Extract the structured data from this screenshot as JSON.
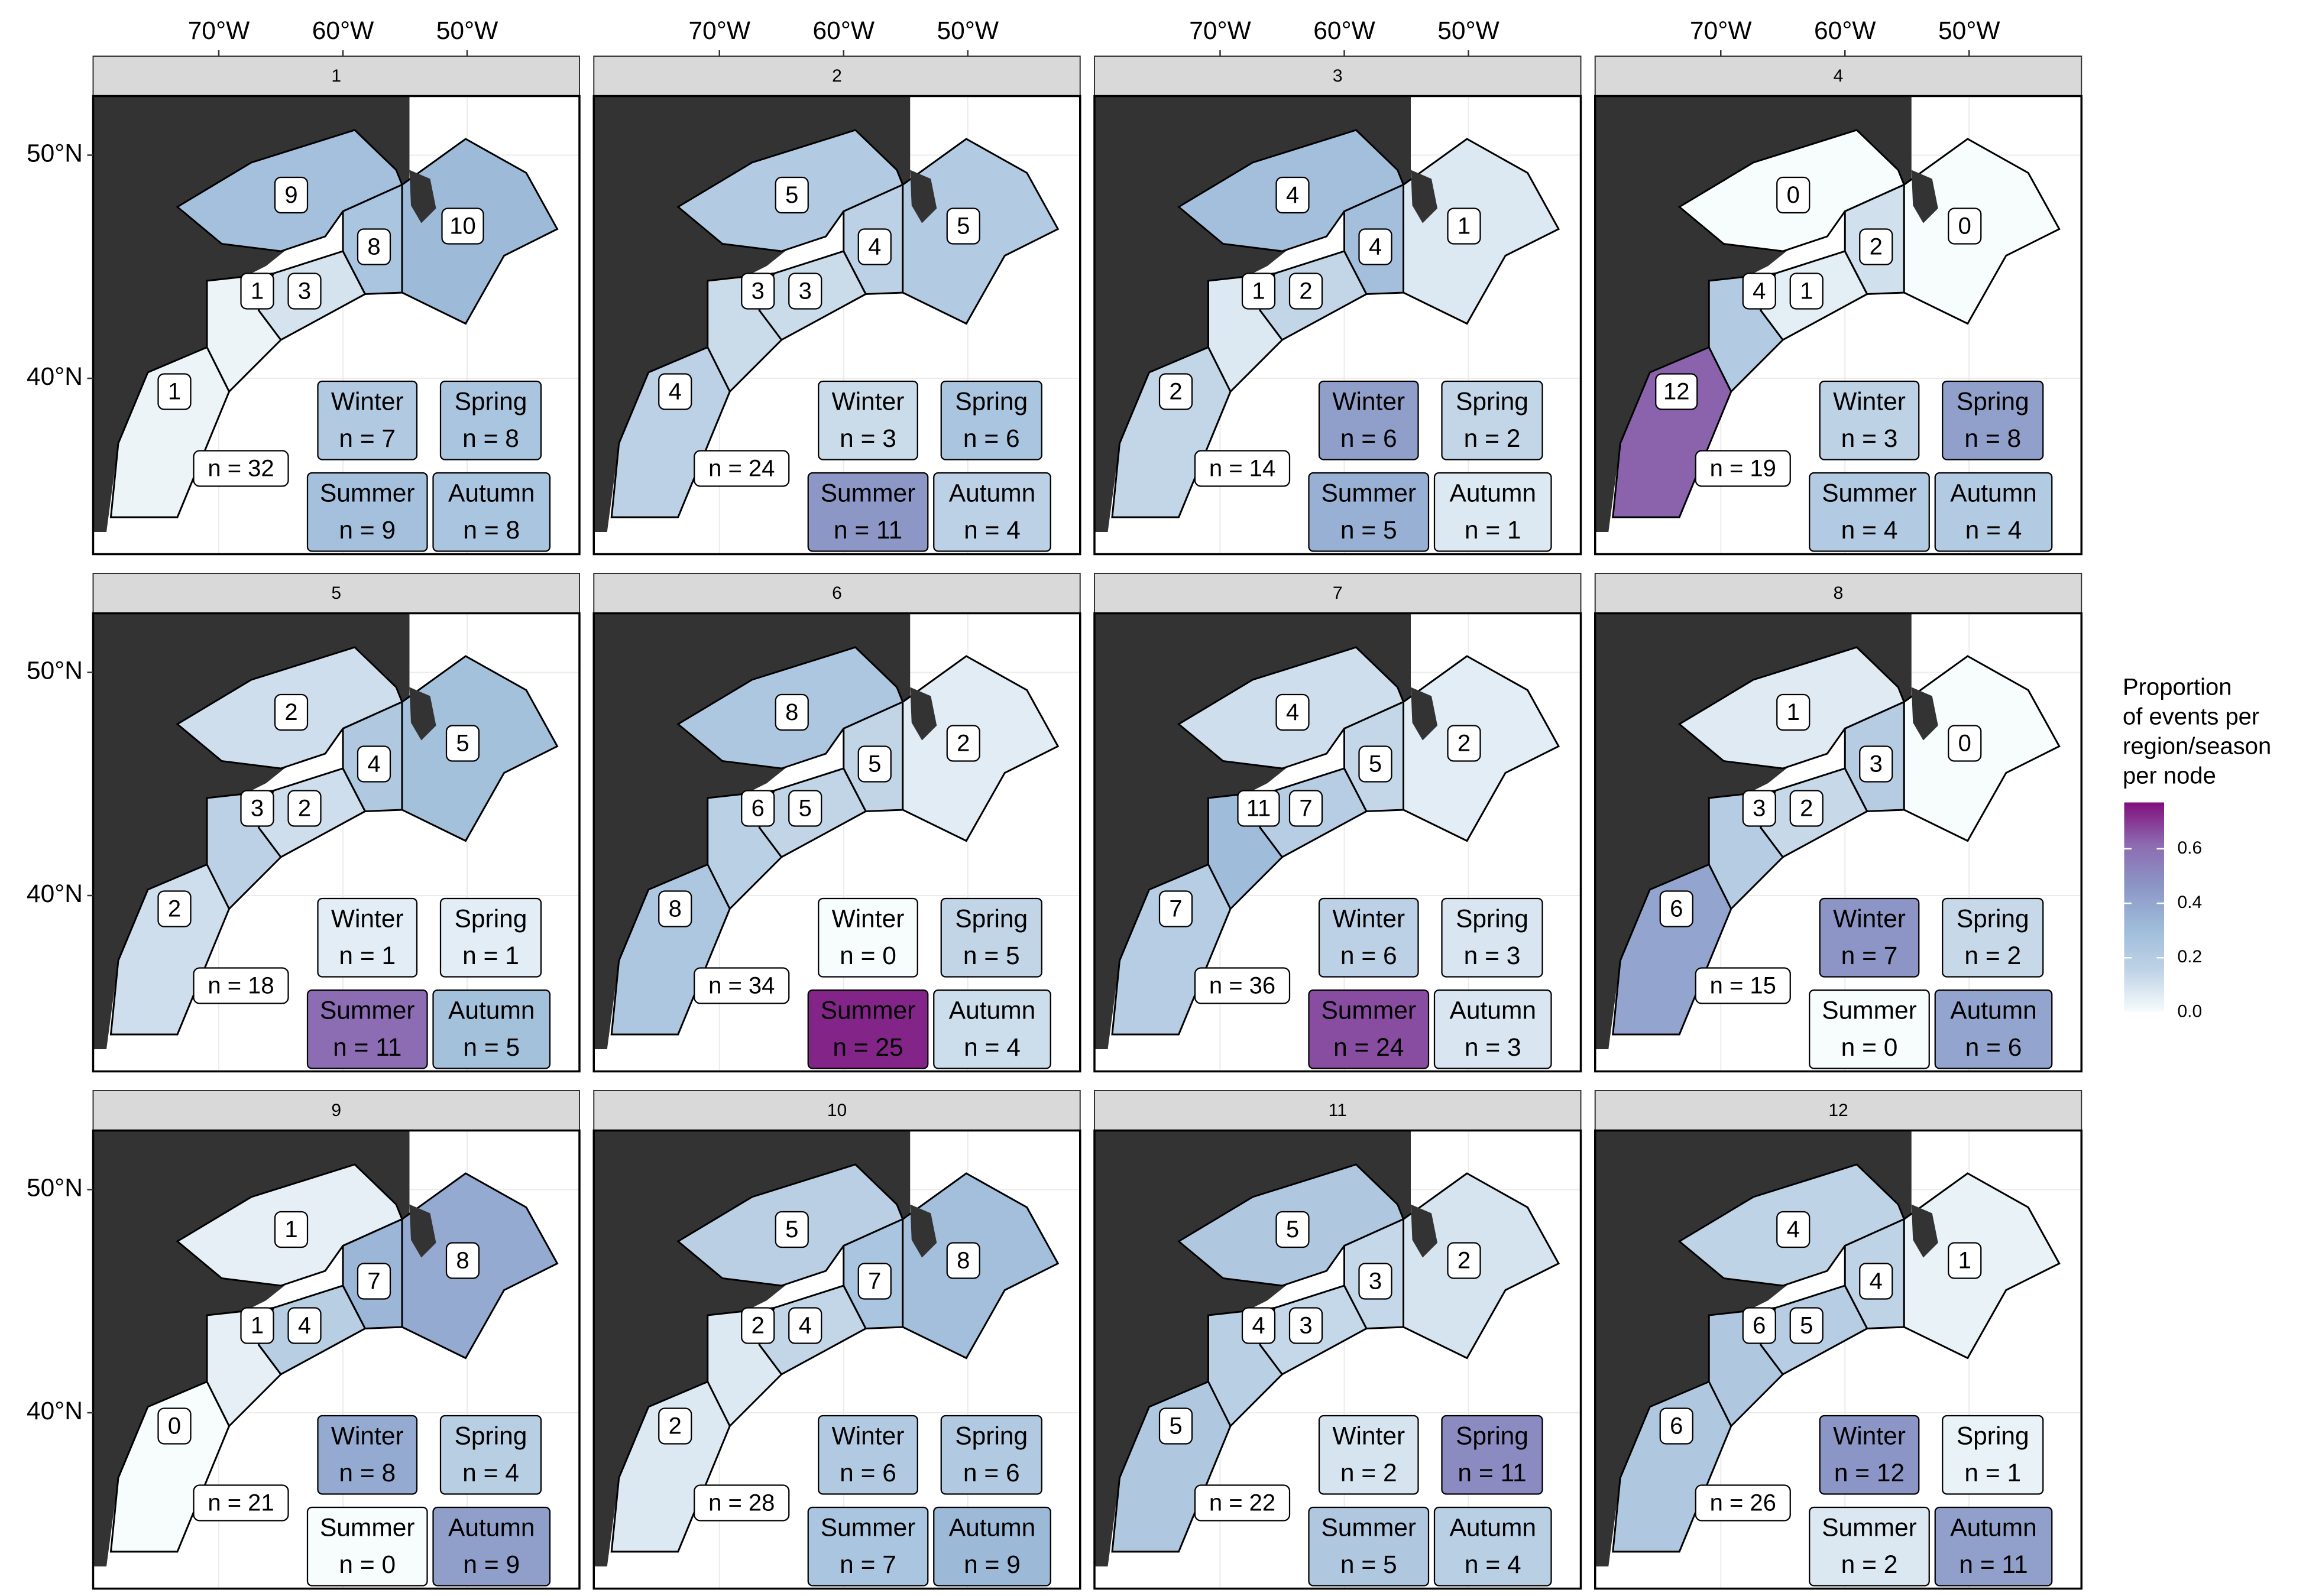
{
  "x_labels": [
    {
      "value": -70,
      "label": "70°W"
    },
    {
      "value": -60,
      "label": "60°W"
    },
    {
      "value": -50,
      "label": "50°W"
    }
  ],
  "y_labels": [
    {
      "value": 50,
      "label": "50°N"
    },
    {
      "value": 40,
      "label": "40°N"
    }
  ],
  "seasons": [
    "Winter",
    "Spring",
    "Summer",
    "Autumn"
  ],
  "legend": {
    "title": [
      "Proportion",
      "of events per",
      "region/season",
      "per node"
    ],
    "range": [
      0,
      0.77
    ],
    "ticks": [
      {
        "value": 0,
        "label": "0.0"
      },
      {
        "value": 0.2,
        "label": "0.2"
      },
      {
        "value": 0.4,
        "label": "0.4"
      },
      {
        "value": 0.6,
        "label": "0.6"
      }
    ],
    "colors": [
      "#f7fcfd",
      "#bfd3e6",
      "#9ebcda",
      "#8c96c6",
      "#8c6bb1",
      "#810f7c"
    ]
  },
  "panels": [
    {
      "label": "1",
      "regions": [
        9,
        1,
        3,
        8,
        10,
        1
      ],
      "n": 32,
      "n_label": "n = 32",
      "season_counts": [
        7,
        8,
        9,
        8
      ],
      "season_labels": [
        "n = 7",
        "n = 8",
        "n = 9",
        "n = 8"
      ]
    },
    {
      "label": "2",
      "regions": [
        5,
        3,
        3,
        4,
        5,
        4
      ],
      "n": 24,
      "n_label": "n = 24",
      "season_counts": [
        3,
        6,
        11,
        4
      ],
      "season_labels": [
        "n = 3",
        "n = 6",
        "n = 11",
        "n = 4"
      ]
    },
    {
      "label": "3",
      "regions": [
        4,
        1,
        2,
        4,
        1,
        2
      ],
      "n": 14,
      "n_label": "n = 14",
      "season_counts": [
        6,
        2,
        5,
        1
      ],
      "season_labels": [
        "n = 6",
        "n = 2",
        "n = 5",
        "n = 1"
      ]
    },
    {
      "label": "4",
      "regions": [
        0,
        4,
        1,
        2,
        0,
        12
      ],
      "n": 19,
      "n_label": "n = 19",
      "season_counts": [
        3,
        8,
        4,
        4
      ],
      "season_labels": [
        "n = 3",
        "n = 8",
        "n = 4",
        "n = 4"
      ]
    },
    {
      "label": "5",
      "regions": [
        2,
        3,
        2,
        4,
        5,
        2
      ],
      "n": 18,
      "n_label": "n = 18",
      "season_counts": [
        1,
        1,
        11,
        5
      ],
      "season_labels": [
        "n = 1",
        "n = 1",
        "n = 11",
        "n = 5"
      ]
    },
    {
      "label": "6",
      "regions": [
        8,
        6,
        5,
        5,
        2,
        8
      ],
      "n": 34,
      "n_label": "n = 34",
      "season_counts": [
        0,
        5,
        25,
        4
      ],
      "season_labels": [
        "n = 0",
        "n = 5",
        "n = 25",
        "n = 4"
      ]
    },
    {
      "label": "7",
      "regions": [
        4,
        11,
        7,
        5,
        2,
        7
      ],
      "n": 36,
      "n_label": "n = 36",
      "season_counts": [
        6,
        3,
        24,
        3
      ],
      "season_labels": [
        "n = 6",
        "n = 3",
        "n = 24",
        "n = 3"
      ]
    },
    {
      "label": "8",
      "regions": [
        1,
        3,
        2,
        3,
        0,
        6
      ],
      "n": 15,
      "n_label": "n = 15",
      "season_counts": [
        7,
        2,
        0,
        6
      ],
      "season_labels": [
        "n = 7",
        "n = 2",
        "n = 0",
        "n = 6"
      ]
    },
    {
      "label": "9",
      "regions": [
        1,
        1,
        4,
        7,
        8,
        0
      ],
      "n": 21,
      "n_label": "n = 21",
      "season_counts": [
        8,
        4,
        0,
        9
      ],
      "season_labels": [
        "n = 8",
        "n = 4",
        "n = 0",
        "n = 9"
      ]
    },
    {
      "label": "10",
      "regions": [
        5,
        2,
        4,
        7,
        8,
        2
      ],
      "n": 28,
      "n_label": "n = 28",
      "season_counts": [
        6,
        6,
        7,
        9
      ],
      "season_labels": [
        "n = 6",
        "n = 6",
        "n = 7",
        "n = 9"
      ]
    },
    {
      "label": "11",
      "regions": [
        5,
        4,
        3,
        3,
        2,
        5
      ],
      "n": 22,
      "n_label": "n = 22",
      "season_counts": [
        2,
        11,
        5,
        4
      ],
      "season_labels": [
        "n = 2",
        "n = 11",
        "n = 5",
        "n = 4"
      ]
    },
    {
      "label": "12",
      "regions": [
        4,
        6,
        5,
        4,
        1,
        6
      ],
      "n": 26,
      "n_label": "n = 26",
      "season_counts": [
        12,
        1,
        2,
        11
      ],
      "season_labels": [
        "n = 12",
        "n = 1",
        "n = 2",
        "n = 11"
      ]
    }
  ]
}
